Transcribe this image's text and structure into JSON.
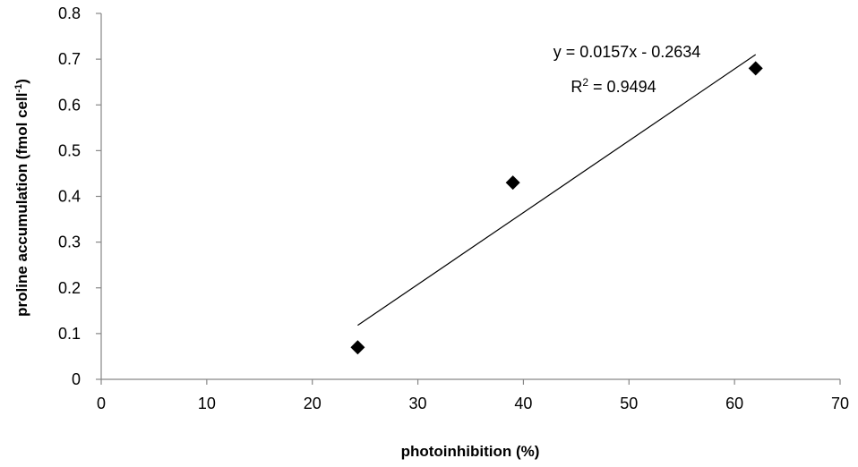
{
  "chart_data": {
    "type": "scatter",
    "title": "",
    "xlabel": "photoinhibition  (%)",
    "ylabel": "proline accumulation  (fmol cell",
    "ylabel_superscript": "-1",
    "ylabel_suffix": ")",
    "xlim": [
      0,
      70
    ],
    "ylim": [
      0,
      0.8
    ],
    "xticks": [
      0,
      10,
      20,
      30,
      40,
      50,
      60,
      70
    ],
    "yticks": [
      0,
      0.1,
      0.2,
      0.3,
      0.4,
      0.5,
      0.6,
      0.7,
      0.8
    ],
    "grid": false,
    "legend": "none",
    "series": [
      {
        "marker": "diamond",
        "x": [
          24.3,
          39.0,
          62.0
        ],
        "y": [
          0.07,
          0.43,
          0.68
        ]
      }
    ],
    "trendline": {
      "type": "linear",
      "slope": 0.0157,
      "intercept": -0.2634,
      "x_range": [
        24.3,
        62.0
      ],
      "equation_label": "y = 0.0157x - 0.2634",
      "r2_prefix": "R",
      "r2_superscript": "2",
      "r2_suffix": " = 0.9494"
    }
  }
}
